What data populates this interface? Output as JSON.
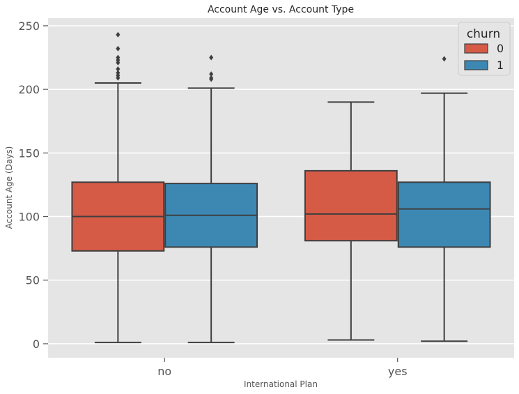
{
  "chart_data": {
    "type": "box",
    "title": "Account Age vs. Account Type",
    "xlabel": "International Plan",
    "ylabel": "Account Age (Days)",
    "categories": [
      "no",
      "yes"
    ],
    "ylim": [
      -11,
      256
    ],
    "yticks": [
      0,
      50,
      100,
      150,
      200,
      250
    ],
    "grid": true,
    "legend": {
      "title": "churn",
      "position": "top-right"
    },
    "series": [
      {
        "name": "0",
        "color": "#d65b47",
        "boxes": [
          {
            "category": "no",
            "whisker_low": 1,
            "q1": 73,
            "median": 100,
            "q3": 127,
            "whisker_high": 205,
            "outliers": [
              209,
              211,
              213,
              216,
              221,
              223,
              225,
              232,
              243
            ]
          },
          {
            "category": "yes",
            "whisker_low": 3,
            "q1": 81,
            "median": 102,
            "q3": 136,
            "whisker_high": 190,
            "outliers": []
          }
        ]
      },
      {
        "name": "1",
        "color": "#3c88b3",
        "boxes": [
          {
            "category": "no",
            "whisker_low": 1,
            "q1": 76,
            "median": 101,
            "q3": 126,
            "whisker_high": 201,
            "outliers": [
              208,
              209,
              212,
              225
            ]
          },
          {
            "category": "yes",
            "whisker_low": 2,
            "q1": 76,
            "median": 106,
            "q3": 127,
            "whisker_high": 197,
            "outliers": [
              224
            ]
          }
        ]
      }
    ]
  }
}
